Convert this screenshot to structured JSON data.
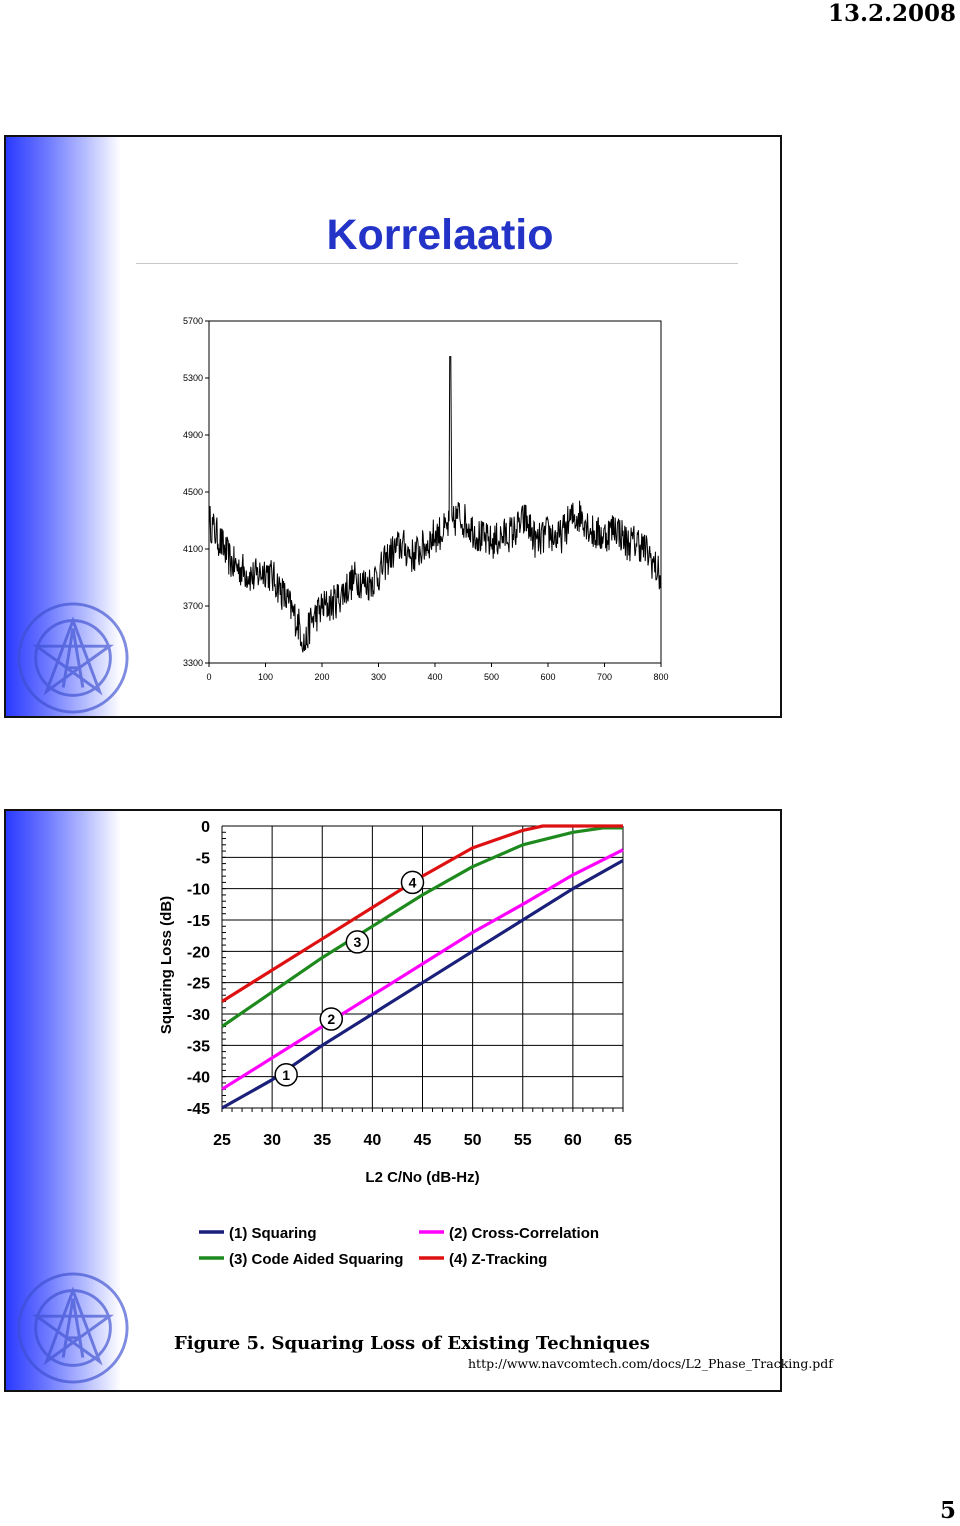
{
  "header": {
    "date": "13.2.2008"
  },
  "footer": {
    "page_number": "5"
  },
  "slide1": {
    "title": "Korrelaatio",
    "logo_icon": "geodetic-institute-seal",
    "chart_data": {
      "type": "line",
      "title": "",
      "xlabel": "",
      "ylabel": "",
      "xlim": [
        0,
        800
      ],
      "ylim": [
        3300,
        5700
      ],
      "x_ticks": [
        0,
        100,
        200,
        300,
        400,
        500,
        600,
        700,
        800
      ],
      "y_ticks": [
        3300,
        3700,
        4100,
        4500,
        4900,
        5300,
        5700
      ],
      "x_tick_labels": [
        "0",
        "100",
        "200",
        "300",
        "400",
        "500",
        "600",
        "700",
        "800"
      ],
      "y_tick_labels": [
        "3300",
        "3700",
        "4100",
        "4500",
        "4900",
        "5300",
        "5700"
      ],
      "grid": false,
      "color": "#000000",
      "series": [
        {
          "x": [
            0,
            20,
            40,
            60,
            80,
            100,
            120,
            140,
            160,
            170,
            180,
            200,
            220,
            240,
            260,
            280,
            300,
            320,
            340,
            360,
            380,
            400,
            420,
            425,
            427,
            430,
            440,
            460,
            480,
            500,
            520,
            540,
            560,
            580,
            600,
            620,
            640,
            660,
            680,
            700,
            720,
            740,
            760,
            780,
            800
          ],
          "y": [
            4300,
            4150,
            4000,
            3950,
            3900,
            3960,
            3860,
            3720,
            3560,
            3420,
            3590,
            3690,
            3720,
            3810,
            3900,
            3850,
            3920,
            4060,
            4130,
            4050,
            4110,
            4200,
            4230,
            4270,
            5450,
            4250,
            4340,
            4270,
            4180,
            4140,
            4190,
            4220,
            4310,
            4140,
            4210,
            4170,
            4310,
            4340,
            4210,
            4190,
            4260,
            4140,
            4150,
            4050,
            3890
          ]
        }
      ]
    }
  },
  "slide2": {
    "logo_icon": "geodetic-institute-seal",
    "source_url": "http://www.navcomtech.com/docs/L2_Phase_Tracking.pdf",
    "chart_data": {
      "type": "line",
      "title": "Figure 5. Squaring Loss of Existing Techniques",
      "xlabel": "L2 C/No (dB-Hz)",
      "ylabel": "Squaring Loss (dB)",
      "xlim": [
        25,
        65
      ],
      "ylim": [
        -45,
        0
      ],
      "x_ticks": [
        25,
        30,
        35,
        40,
        45,
        50,
        55,
        60,
        65
      ],
      "y_ticks": [
        0,
        -5,
        -10,
        -15,
        -20,
        -25,
        -30,
        -35,
        -40,
        -45
      ],
      "x_tick_labels": [
        "25",
        "30",
        "35",
        "40",
        "45",
        "50",
        "55",
        "60",
        "65"
      ],
      "y_tick_labels": [
        "0",
        "-5",
        "-10",
        "-15",
        "-20",
        "-25",
        "-30",
        "-35",
        "-40",
        "-45"
      ],
      "grid": true,
      "legend_position": "bottom",
      "series": [
        {
          "name": "(1) Squaring",
          "marker": "1",
          "color": "#1a1f7a",
          "x": [
            25,
            30,
            35,
            40,
            45,
            50,
            55,
            60,
            65
          ],
          "y": [
            -45,
            -40.5,
            -35,
            -30,
            -25,
            -20,
            -15,
            -10,
            -5.5
          ]
        },
        {
          "name": "(2) Cross-Correlation",
          "marker": "2",
          "color": "#ff00ff",
          "x": [
            25,
            30,
            35,
            40,
            45,
            50,
            55,
            60,
            65
          ],
          "y": [
            -42,
            -37,
            -32,
            -27,
            -22,
            -17,
            -12.5,
            -7.8,
            -3.8
          ]
        },
        {
          "name": "(3) Code Aided Squaring",
          "marker": "3",
          "color": "#1e8a1e",
          "x": [
            25,
            30,
            35,
            40,
            45,
            50,
            55,
            60,
            63,
            65
          ],
          "y": [
            -32,
            -26.5,
            -21,
            -16,
            -11,
            -6.5,
            -3,
            -1,
            -0.3,
            -0.3
          ]
        },
        {
          "name": "(4) Z-Tracking",
          "marker": "4",
          "color": "#dd1111",
          "x": [
            25,
            30,
            35,
            40,
            45,
            50,
            55,
            57,
            60,
            65
          ],
          "y": [
            -28,
            -23,
            -18,
            -13,
            -8,
            -3.5,
            -0.7,
            0,
            0,
            0
          ]
        }
      ],
      "marker_positions": [
        {
          "label": "1",
          "x": 31.4,
          "y": -39.7
        },
        {
          "label": "2",
          "x": 35.9,
          "y": -30.8
        },
        {
          "label": "3",
          "x": 38.5,
          "y": -18.5
        },
        {
          "label": "4",
          "x": 44.0,
          "y": -9.0
        }
      ]
    }
  }
}
